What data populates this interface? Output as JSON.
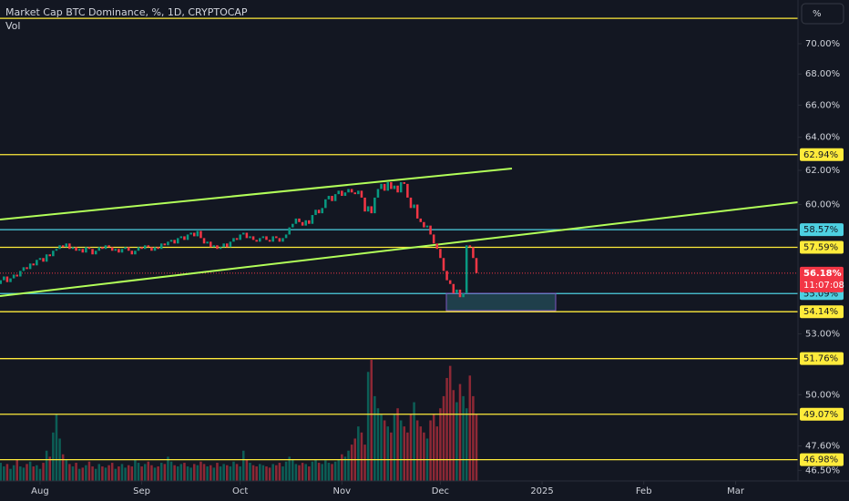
{
  "chart_data": {
    "type": "candlestick",
    "title": "Market Cap BTC Dominance, %, 1D, CRYPTOCAP",
    "volume_label": "Vol",
    "scale_button": "%",
    "ylog": true,
    "ylim": [
      46.03,
      73.0
    ],
    "yticks": [
      {
        "value": 70,
        "label": "70.00%"
      },
      {
        "value": 68,
        "label": "68.00%"
      },
      {
        "value": 66,
        "label": "66.00%"
      },
      {
        "value": 64,
        "label": "64.00%"
      },
      {
        "value": 62,
        "label": "62.00%"
      },
      {
        "value": 60,
        "label": "60.00%"
      },
      {
        "value": 53,
        "label": "53.00%"
      },
      {
        "value": 50,
        "label": "50.00%"
      },
      {
        "value": 47.6,
        "label": "47.60%"
      },
      {
        "value": 46.5,
        "label": "46.50%"
      }
    ],
    "xlim": [
      -0.2,
      243
    ],
    "xticks": [
      {
        "value": 12,
        "label": "Aug"
      },
      {
        "value": 43,
        "label": "Sep"
      },
      {
        "value": 73,
        "label": "Oct"
      },
      {
        "value": 104,
        "label": "Nov"
      },
      {
        "value": 134,
        "label": "Dec"
      },
      {
        "value": 165,
        "label": "2025"
      },
      {
        "value": 196,
        "label": "Feb"
      },
      {
        "value": 224,
        "label": "Mar"
      }
    ],
    "up_color": "#089981",
    "down_color": "#f23645",
    "open": [
      55.6,
      55.8,
      56.0,
      55.7,
      55.9,
      56.1,
      56.0,
      56.3,
      56.5,
      56.4,
      56.7,
      56.6,
      56.9,
      57.0,
      56.8,
      57.2,
      57.1,
      57.4,
      57.5,
      57.7,
      57.6,
      57.8,
      57.5,
      57.6,
      57.4,
      57.5,
      57.3,
      57.6,
      57.5,
      57.2,
      57.4,
      57.6,
      57.5,
      57.7,
      57.6,
      57.4,
      57.5,
      57.3,
      57.5,
      57.6,
      57.4,
      57.2,
      57.4,
      57.6,
      57.5,
      57.7,
      57.6,
      57.4,
      57.6,
      57.5,
      57.8,
      57.7,
      57.9,
      58.0,
      57.8,
      58.1,
      58.2,
      58.0,
      58.3,
      58.4,
      58.2,
      58.5,
      58.1,
      57.8,
      57.9,
      57.6,
      57.7,
      57.5,
      57.6,
      57.8,
      57.6,
      57.9,
      58.1,
      58.0,
      58.3,
      58.4,
      58.1,
      58.2,
      58.0,
      57.9,
      58.1,
      58.2,
      58.0,
      57.9,
      58.2,
      58.1,
      57.9,
      58.1,
      58.3,
      58.7,
      58.9,
      59.2,
      59.0,
      58.8,
      59.1,
      58.9,
      59.4,
      59.7,
      59.5,
      59.8,
      60.3,
      60.5,
      60.2,
      60.6,
      60.8,
      60.5,
      60.7,
      60.9,
      60.7,
      60.6,
      60.8,
      60.4,
      59.6,
      59.9,
      59.5,
      60.4,
      60.9,
      61.2,
      60.8,
      61.3,
      60.9,
      61.1,
      60.7,
      61.3,
      61.2,
      60.4,
      59.8,
      60.0,
      59.2,
      59.0,
      58.7,
      58.8,
      58.3,
      57.8,
      57.5,
      57.0,
      56.3,
      55.8,
      55.6,
      55.1,
      55.3,
      54.9,
      55.1,
      57.7,
      57.6,
      57.0
    ],
    "close": [
      55.8,
      56.0,
      55.7,
      55.9,
      56.1,
      56.0,
      56.3,
      56.5,
      56.4,
      56.7,
      56.6,
      56.9,
      57.0,
      56.8,
      57.2,
      57.1,
      57.4,
      57.5,
      57.7,
      57.6,
      57.8,
      57.5,
      57.6,
      57.4,
      57.5,
      57.3,
      57.6,
      57.5,
      57.2,
      57.4,
      57.6,
      57.5,
      57.7,
      57.6,
      57.4,
      57.5,
      57.3,
      57.5,
      57.6,
      57.4,
      57.2,
      57.4,
      57.6,
      57.5,
      57.7,
      57.6,
      57.4,
      57.6,
      57.5,
      57.8,
      57.7,
      57.9,
      58.0,
      57.8,
      58.1,
      58.2,
      58.0,
      58.3,
      58.4,
      58.2,
      58.5,
      58.1,
      57.8,
      57.9,
      57.6,
      57.7,
      57.5,
      57.6,
      57.8,
      57.6,
      57.9,
      58.1,
      58.0,
      58.3,
      58.4,
      58.1,
      58.2,
      58.0,
      57.9,
      58.1,
      58.2,
      58.0,
      57.9,
      58.2,
      58.1,
      57.9,
      58.1,
      58.3,
      58.7,
      58.9,
      59.2,
      59.0,
      58.8,
      59.1,
      58.9,
      59.4,
      59.7,
      59.5,
      59.8,
      60.3,
      60.5,
      60.2,
      60.6,
      60.8,
      60.5,
      60.7,
      60.9,
      60.7,
      60.6,
      60.8,
      60.4,
      59.6,
      59.9,
      59.5,
      60.4,
      60.9,
      61.2,
      60.8,
      61.3,
      60.9,
      61.1,
      60.7,
      61.3,
      61.2,
      60.4,
      59.8,
      60.0,
      59.2,
      59.0,
      58.7,
      58.8,
      58.3,
      57.8,
      57.5,
      57.0,
      56.3,
      55.8,
      55.6,
      55.1,
      55.3,
      54.9,
      55.1,
      57.7,
      57.6,
      57.0,
      56.18
    ],
    "volume_lim": [
      0,
      100
    ],
    "volume": [
      15,
      12,
      14,
      10,
      13,
      18,
      12,
      11,
      14,
      16,
      12,
      13,
      10,
      15,
      25,
      20,
      40,
      55,
      35,
      22,
      18,
      14,
      12,
      15,
      10,
      11,
      13,
      16,
      12,
      10,
      14,
      12,
      11,
      13,
      15,
      10,
      12,
      14,
      11,
      13,
      12,
      18,
      15,
      12,
      14,
      16,
      13,
      11,
      12,
      15,
      14,
      20,
      16,
      13,
      12,
      14,
      15,
      12,
      11,
      14,
      13,
      16,
      14,
      12,
      13,
      11,
      15,
      12,
      14,
      13,
      12,
      16,
      14,
      12,
      25,
      18,
      15,
      13,
      12,
      14,
      13,
      12,
      11,
      14,
      13,
      15,
      12,
      16,
      20,
      18,
      14,
      13,
      15,
      14,
      12,
      16,
      18,
      15,
      14,
      17,
      15,
      14,
      16,
      18,
      22,
      20,
      25,
      30,
      35,
      45,
      40,
      30,
      90,
      100,
      70,
      60,
      55,
      50,
      45,
      40,
      55,
      60,
      50,
      45,
      40,
      55,
      65,
      50,
      45,
      40,
      35,
      50,
      55,
      45,
      60,
      70,
      85,
      95,
      75,
      65,
      80,
      70,
      60,
      87,
      70,
      55
    ],
    "levels": [
      {
        "value": 71.73,
        "color": "#ffeb3b"
      },
      {
        "value": 62.94,
        "label": "62.94%",
        "color": "#ffeb3b"
      },
      {
        "value": 58.57,
        "label": "58.57%",
        "color": "#4dd0e1"
      },
      {
        "value": 57.59,
        "label": "57.59%",
        "color": "#ffeb3b"
      },
      {
        "value": 55.09,
        "label": "55.09%",
        "color": "#4dd0e1"
      },
      {
        "value": 54.14,
        "label": "54.14%",
        "color": "#ffeb3b"
      },
      {
        "value": 51.76,
        "label": "51.76%",
        "color": "#ffeb3b"
      },
      {
        "value": 49.07,
        "label": "49.07%",
        "color": "#ffeb3b"
      },
      {
        "value": 46.98,
        "label": "46.98%",
        "color": "#ffeb3b"
      }
    ],
    "last_price": {
      "value": 56.18,
      "label": "56.18%",
      "countdown": "11:07:08",
      "color": "#f23645"
    }
  }
}
